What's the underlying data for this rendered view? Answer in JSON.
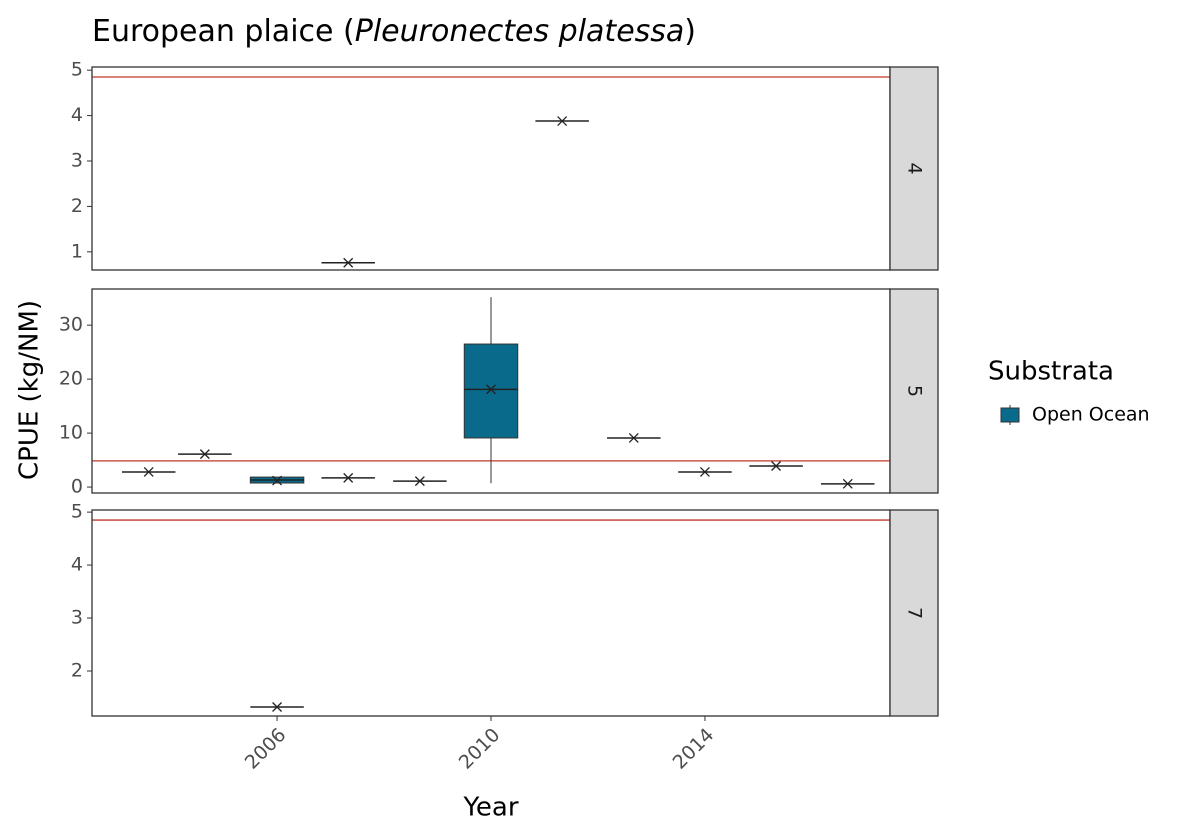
{
  "chart_data": {
    "type": "boxplot",
    "title_parts": [
      "European plaice (",
      "Pleuronectes platessa",
      ")"
    ],
    "x_label": "Year",
    "y_label": "CPUE (kg/NM)",
    "legend_title": "Substrata",
    "series": [
      {
        "name": "Open Ocean",
        "color": "#0a6a8c"
      }
    ],
    "reference_color": "#c0392b",
    "xlim": [
      2002.54,
      2017.46
    ],
    "xticks": [
      2006,
      2010,
      2014
    ],
    "facets": [
      {
        "label": "4",
        "ylim": [
          0.6,
          5.07
        ],
        "yticks": [
          1,
          2,
          3,
          4,
          5
        ],
        "reference_line": 4.85,
        "boxes": [
          {
            "x": 2007.33,
            "min": 0.76,
            "q1": 0.76,
            "median": 0.76,
            "q3": 0.76,
            "max": 0.76,
            "mean": 0.76
          },
          {
            "x": 2011.33,
            "min": 3.88,
            "q1": 3.88,
            "median": 3.88,
            "q3": 3.88,
            "max": 3.88,
            "mean": 3.88
          }
        ]
      },
      {
        "label": "5",
        "ylim": [
          -1.1,
          36.7
        ],
        "yticks": [
          0,
          10,
          20,
          30
        ],
        "reference_line": 4.85,
        "boxes": [
          {
            "x": 2003.6,
            "min": 2.8,
            "q1": 2.8,
            "median": 2.8,
            "q3": 2.8,
            "max": 2.8,
            "mean": 2.8
          },
          {
            "x": 2004.65,
            "min": 6.1,
            "q1": 6.1,
            "median": 6.1,
            "q3": 6.1,
            "max": 6.1,
            "mean": 6.1
          },
          {
            "x": 2006,
            "min": 0.75,
            "q1": 0.75,
            "median": 1.3,
            "q3": 1.85,
            "max": 1.85,
            "mean": 1.2
          },
          {
            "x": 2007.33,
            "min": 1.7,
            "q1": 1.7,
            "median": 1.7,
            "q3": 1.7,
            "max": 1.7,
            "mean": 1.7
          },
          {
            "x": 2008.67,
            "min": 1.1,
            "q1": 1.1,
            "median": 1.1,
            "q3": 1.1,
            "max": 1.1,
            "mean": 1.1
          },
          {
            "x": 2010,
            "min": 0.7,
            "q1": 9.1,
            "median": 18.1,
            "q3": 26.5,
            "max": 35.2,
            "mean": 18.1
          },
          {
            "x": 2012.67,
            "min": 9.1,
            "q1": 9.1,
            "median": 9.1,
            "q3": 9.1,
            "max": 9.1,
            "mean": 9.1
          },
          {
            "x": 2014,
            "min": 2.8,
            "q1": 2.8,
            "median": 2.8,
            "q3": 2.8,
            "max": 2.8,
            "mean": 2.8
          },
          {
            "x": 2015.33,
            "min": 3.9,
            "q1": 3.9,
            "median": 3.9,
            "q3": 3.9,
            "max": 3.9,
            "mean": 3.9
          },
          {
            "x": 2016.67,
            "min": 0.6,
            "q1": 0.6,
            "median": 0.6,
            "q3": 0.6,
            "max": 0.6,
            "mean": 0.6
          }
        ]
      },
      {
        "label": "7",
        "ylim": [
          1.15,
          5.04
        ],
        "yticks": [
          2,
          3,
          4,
          5
        ],
        "reference_line": 4.85,
        "boxes": [
          {
            "x": 2006,
            "min": 1.32,
            "q1": 1.32,
            "median": 1.32,
            "q3": 1.32,
            "max": 1.32,
            "mean": 1.32
          }
        ]
      }
    ]
  }
}
